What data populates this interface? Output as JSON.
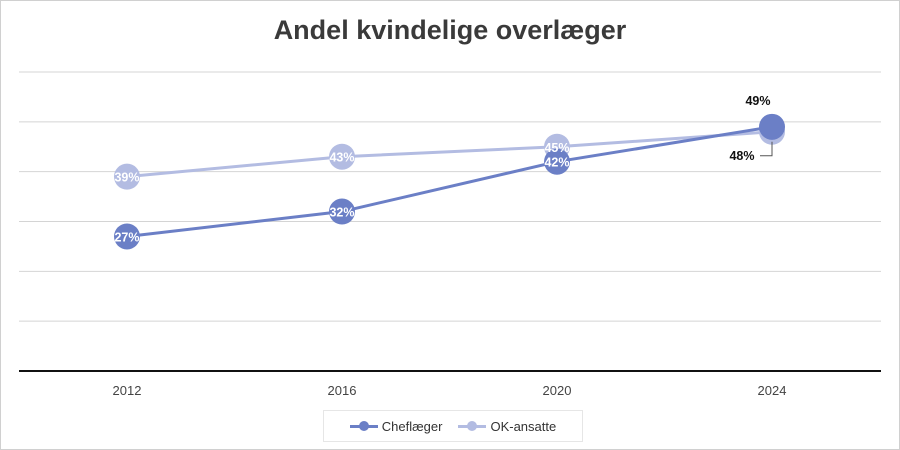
{
  "chart_data": {
    "type": "line",
    "title": "Andel kvindelige overlæger",
    "categories": [
      "2012",
      "2016",
      "2020",
      "2024"
    ],
    "series": [
      {
        "name": "Cheflæger",
        "values": [
          27,
          32,
          42,
          49
        ],
        "labels": [
          "27%",
          "32%",
          "42%",
          "49%"
        ],
        "color": "#6b7fc6"
      },
      {
        "name": "OK-ansatte",
        "values": [
          39,
          43,
          45,
          48
        ],
        "labels": [
          "39%",
          "43%",
          "45%",
          "48%"
        ],
        "color": "#b3bce2"
      }
    ],
    "ylim": [
      0,
      60
    ],
    "y_gridlines": [
      10,
      20,
      30,
      40,
      50,
      60
    ],
    "y_tick_labels_shown": false,
    "grid": true,
    "legend_position": "bottom"
  }
}
